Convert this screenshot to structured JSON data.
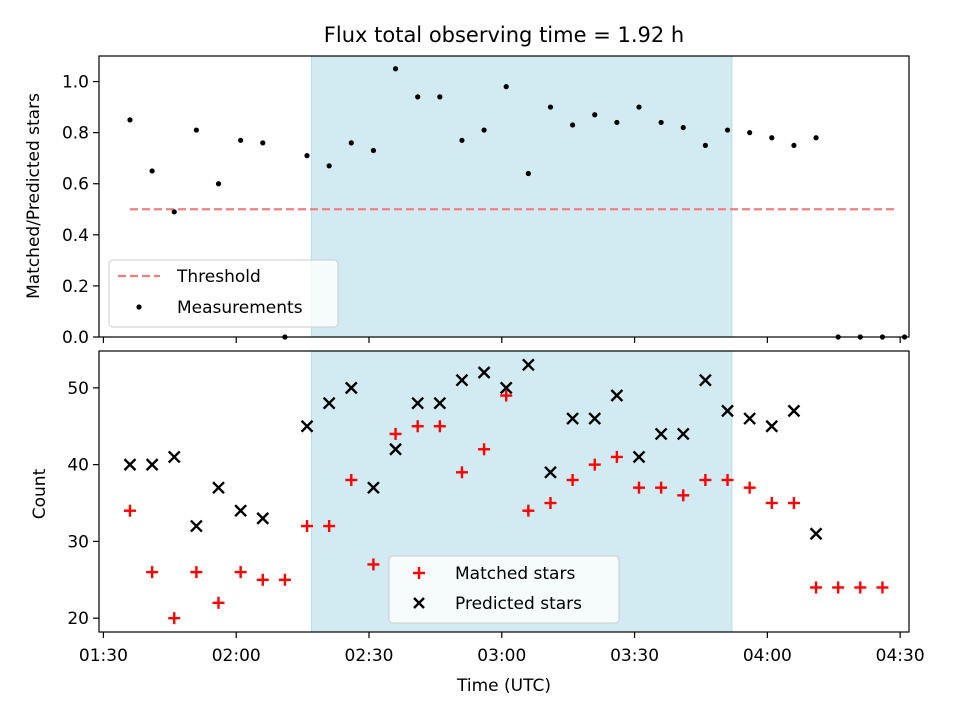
{
  "figure_title": "Flux total observing time = 1.92 h",
  "colors": {
    "shade": "#add8e6",
    "threshold": "#f08080",
    "measurement": "#000000",
    "matched": "#ff0000",
    "predicted": "#000000"
  },
  "chart_data": [
    {
      "type": "scatter",
      "title": "Flux total observing time = 1.92 h",
      "xlabel": "",
      "ylabel": "Matched/Predicted stars",
      "xlim_min": [
        89,
        272
      ],
      "ylim": [
        0,
        1.1
      ],
      "yticks": [
        0.0,
        0.2,
        0.4,
        0.6,
        0.8,
        1.0
      ],
      "ytick_labels": [
        "0.0",
        "0.2",
        "0.4",
        "0.6",
        "0.8",
        "1.0"
      ],
      "shaded_region_min": [
        137,
        232
      ],
      "threshold": {
        "label": "Threshold",
        "value": 0.5,
        "x_range_min": [
          96,
          269
        ]
      },
      "series": [
        {
          "name": "Measurements",
          "x_min": [
            96,
            101,
            106,
            111,
            116,
            121,
            126,
            131,
            136,
            141,
            146,
            151,
            156,
            161,
            166,
            171,
            176,
            181,
            186,
            191,
            196,
            201,
            206,
            211,
            216,
            221,
            226,
            231,
            236,
            241,
            246,
            251,
            256,
            261,
            266,
            271
          ],
          "y": [
            0.85,
            0.65,
            0.49,
            0.81,
            0.6,
            0.77,
            0.76,
            0.0,
            0.71,
            0.67,
            0.76,
            0.73,
            1.05,
            0.94,
            0.94,
            0.77,
            0.81,
            0.98,
            0.64,
            0.9,
            0.83,
            0.87,
            0.84,
            0.9,
            0.84,
            0.82,
            0.75,
            0.81,
            0.8,
            0.78,
            0.75,
            0.78,
            0.0,
            0.0,
            0.0,
            0.0
          ]
        }
      ],
      "legend": [
        "Threshold",
        "Measurements"
      ],
      "legend_loc": "lower left"
    },
    {
      "type": "scatter",
      "title": "",
      "xlabel": "Time (UTC)",
      "ylabel": "Count",
      "xlim_min": [
        89,
        272
      ],
      "ylim": [
        18.2,
        54.8
      ],
      "yticks": [
        20,
        30,
        40,
        50
      ],
      "ytick_labels": [
        "20",
        "30",
        "40",
        "50"
      ],
      "xticks_min": [
        90,
        120,
        150,
        180,
        210,
        240,
        270
      ],
      "xtick_labels": [
        "01:30",
        "02:00",
        "02:30",
        "03:00",
        "03:30",
        "04:00",
        "04:30"
      ],
      "shaded_region_min": [
        137,
        232
      ],
      "series": [
        {
          "name": "Matched stars",
          "marker": "+",
          "x_min": [
            96,
            101,
            106,
            111,
            116,
            121,
            126,
            131,
            136,
            141,
            146,
            151,
            156,
            161,
            166,
            171,
            176,
            181,
            186,
            191,
            196,
            201,
            206,
            211,
            216,
            221,
            226,
            231,
            236,
            241,
            246,
            251,
            256,
            261,
            266
          ],
          "y": [
            34,
            26,
            20,
            26,
            22,
            26,
            25,
            25,
            32,
            32,
            38,
            27,
            44,
            45,
            45,
            39,
            42,
            49,
            34,
            35,
            38,
            40,
            41,
            37,
            37,
            36,
            38,
            38,
            37,
            35,
            35,
            24,
            24,
            24,
            24
          ]
        },
        {
          "name": "Predicted stars",
          "marker": "x",
          "x_min": [
            96,
            101,
            106,
            111,
            116,
            121,
            126,
            136,
            141,
            146,
            151,
            156,
            161,
            166,
            171,
            176,
            181,
            186,
            191,
            196,
            201,
            206,
            211,
            216,
            221,
            226,
            231,
            236,
            241,
            246,
            251
          ],
          "y": [
            40,
            40,
            41,
            32,
            37,
            34,
            33,
            45,
            48,
            50,
            37,
            42,
            48,
            48,
            51,
            52,
            50,
            53,
            39,
            46,
            46,
            49,
            41,
            44,
            44,
            51,
            47,
            46,
            45,
            47,
            31
          ]
        }
      ],
      "legend": [
        "Matched stars",
        "Predicted stars"
      ],
      "legend_loc": "lower center"
    }
  ]
}
